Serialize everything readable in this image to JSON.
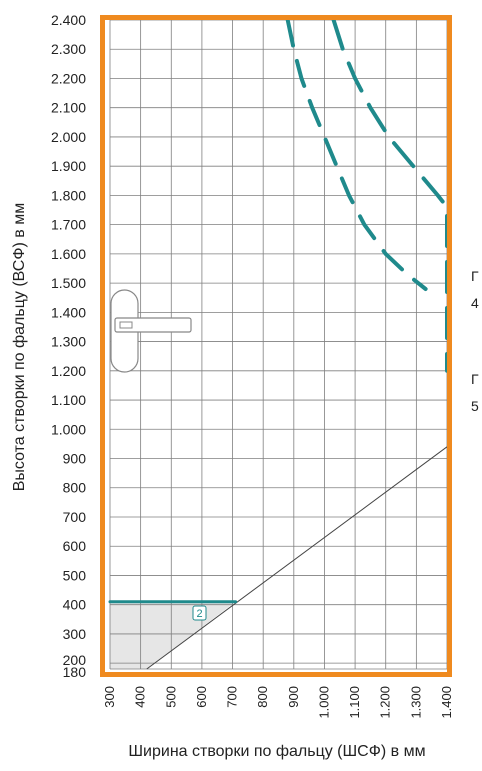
{
  "chart_data": {
    "type": "line",
    "title": "",
    "xlabel": "Ширина створки по фальцу (ШСФ) в мм",
    "ylabel": "Высота створки по фальцу (ВСФ) в мм",
    "x_ticks": [
      {
        "value": 300,
        "label": "300"
      },
      {
        "value": 400,
        "label": "400"
      },
      {
        "value": 500,
        "label": "500"
      },
      {
        "value": 600,
        "label": "600"
      },
      {
        "value": 700,
        "label": "700"
      },
      {
        "value": 800,
        "label": "800"
      },
      {
        "value": 900,
        "label": "900"
      },
      {
        "value": 1000,
        "label": "1.000"
      },
      {
        "value": 1100,
        "label": "1.100"
      },
      {
        "value": 1200,
        "label": "1.200"
      },
      {
        "value": 1300,
        "label": "1.300"
      },
      {
        "value": 1400,
        "label": "1.400"
      }
    ],
    "y_ticks": [
      {
        "value": 180,
        "label": "180"
      },
      {
        "value": 200,
        "label": "200"
      },
      {
        "value": 300,
        "label": "300"
      },
      {
        "value": 400,
        "label": "400"
      },
      {
        "value": 500,
        "label": "500"
      },
      {
        "value": 600,
        "label": "600"
      },
      {
        "value": 700,
        "label": "700"
      },
      {
        "value": 800,
        "label": "800"
      },
      {
        "value": 900,
        "label": "900"
      },
      {
        "value": 1000,
        "label": "1.000"
      },
      {
        "value": 1100,
        "label": "1.100"
      },
      {
        "value": 1200,
        "label": "1.200"
      },
      {
        "value": 1300,
        "label": "1.300"
      },
      {
        "value": 1400,
        "label": "1.400"
      },
      {
        "value": 1500,
        "label": "1.500"
      },
      {
        "value": 1600,
        "label": "1.600"
      },
      {
        "value": 1700,
        "label": "1.700"
      },
      {
        "value": 1800,
        "label": "1.800"
      },
      {
        "value": 1900,
        "label": "1.900"
      },
      {
        "value": 2000,
        "label": "2.000"
      },
      {
        "value": 2100,
        "label": "2.100"
      },
      {
        "value": 2200,
        "label": "2.200"
      },
      {
        "value": 2300,
        "label": "2.300"
      },
      {
        "value": 2400,
        "label": "2.400"
      }
    ],
    "xlim": [
      300,
      1400
    ],
    "ylim": [
      180,
      2400
    ],
    "grid": true,
    "series": [
      {
        "style": "dashed-long",
        "points": [
          [
            1030,
            2400
          ],
          [
            1060,
            2300
          ],
          [
            1100,
            2200
          ],
          [
            1150,
            2100
          ],
          [
            1210,
            2000
          ],
          [
            1290,
            1900
          ],
          [
            1370,
            1800
          ],
          [
            1400,
            1760
          ],
          [
            1400,
            1200
          ]
        ]
      },
      {
        "style": "dashed-short",
        "points": [
          [
            880,
            2400
          ],
          [
            900,
            2300
          ],
          [
            925,
            2200
          ],
          [
            960,
            2100
          ],
          [
            1000,
            2000
          ],
          [
            1040,
            1900
          ],
          [
            1080,
            1800
          ],
          [
            1130,
            1700
          ],
          [
            1200,
            1600
          ],
          [
            1270,
            1530
          ],
          [
            1330,
            1480
          ]
        ]
      },
      {
        "style": "solid",
        "points": [
          [
            300,
            410
          ],
          [
            710,
            410
          ]
        ]
      }
    ],
    "diagonal": [
      [
        420,
        180
      ],
      [
        1400,
        940
      ]
    ],
    "shaded_region": [
      [
        300,
        180
      ],
      [
        300,
        410
      ],
      [
        710,
        410
      ],
      [
        420,
        180
      ]
    ],
    "region_label": "2",
    "side_notes": [
      "Г",
      "4",
      "Г",
      "5"
    ]
  },
  "colors": {
    "frame": "#ef8a1f",
    "grid": "#7f7f7f",
    "curve": "#1f8a8c",
    "diagonal": "#444444",
    "shade": "#e6e6e6",
    "handle": "#888888"
  },
  "icons": {
    "handle": "window-handle-icon"
  }
}
